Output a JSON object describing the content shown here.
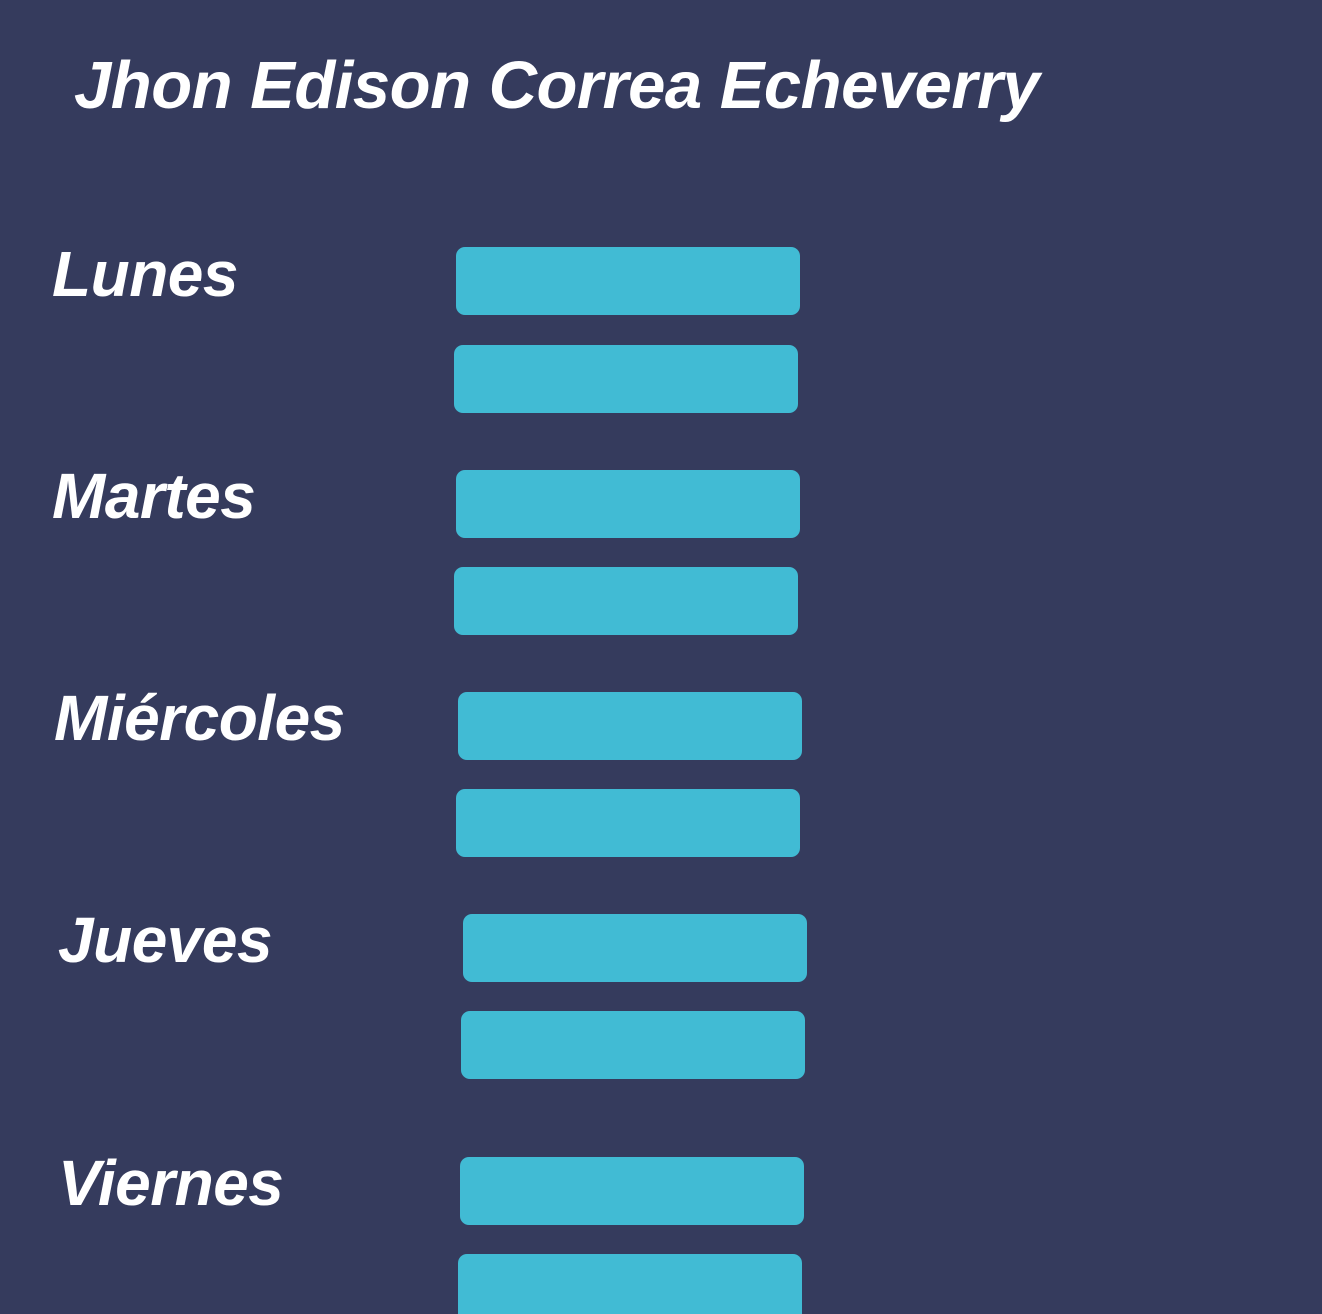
{
  "header": {
    "title": "Jhon Edison Correa Echeverry"
  },
  "schedule": {
    "days": [
      {
        "label": "Lunes"
      },
      {
        "label": "Martes"
      },
      {
        "label": "Miércoles"
      },
      {
        "label": "Jueves"
      },
      {
        "label": "Viernes"
      }
    ]
  },
  "colors": {
    "background": "#353b5d",
    "slot_button": "#41bbd4",
    "text": "#ffffff"
  }
}
